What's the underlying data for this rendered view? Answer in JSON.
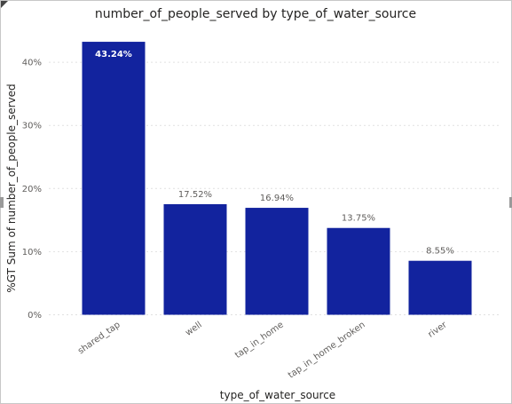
{
  "chart_data": {
    "type": "bar",
    "title": "number_of_people_served by type_of_water_source",
    "xlabel": "type_of_water_source",
    "ylabel": "%GT Sum of number_of_people_served",
    "categories": [
      "shared_tap",
      "well",
      "tap_in_home",
      "tap_in_home_broken",
      "river"
    ],
    "values": [
      43.24,
      17.52,
      16.94,
      13.75,
      8.55
    ],
    "data_labels": [
      "43.24%",
      "17.52%",
      "16.94%",
      "13.75%",
      "8.55%"
    ],
    "yticks": [
      {
        "value": 0,
        "label": "0%"
      },
      {
        "value": 10,
        "label": "10%"
      },
      {
        "value": 20,
        "label": "20%"
      },
      {
        "value": 30,
        "label": "30%"
      },
      {
        "value": 40,
        "label": "40%"
      }
    ],
    "ylim": [
      0,
      45
    ],
    "grid": true,
    "legend": "none",
    "bar_color": "#12239e",
    "inside_label_color": "#ffffff"
  }
}
